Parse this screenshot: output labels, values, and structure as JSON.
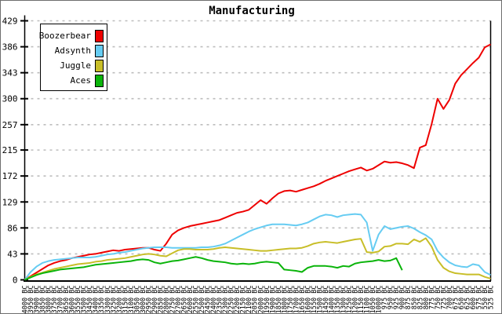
{
  "window": {
    "title": "Manufacturing"
  },
  "colors": {
    "background": "#ffffff",
    "axis": "#000000",
    "gridline": "#bdbdbd",
    "text": "#000000",
    "legend_border": "#000000"
  },
  "chart_data": {
    "type": "line",
    "title": "Manufacturing",
    "xlabel": "",
    "ylabel": "",
    "ylim": [
      0,
      429
    ],
    "y_ticks": [
      0,
      43,
      86,
      129,
      172,
      215,
      257,
      300,
      343,
      386,
      429
    ],
    "grid": "horizontal-dashed",
    "legend_position": "top-left",
    "x_tick_labels": [
      "4000 BC",
      "3950 BC",
      "3900 BC",
      "3850 BC",
      "3800 BC",
      "3750 BC",
      "3700 BC",
      "3650 BC",
      "3600 BC",
      "3550 BC",
      "3500 BC",
      "3450 BC",
      "3400 BC",
      "3350 BC",
      "3300 BC",
      "3250 BC",
      "3200 BC",
      "3150 BC",
      "3100 BC",
      "3050 BC",
      "3000 BC",
      "2950 BC",
      "2900 BC",
      "2850 BC",
      "2800 BC",
      "2750 BC",
      "2700 BC",
      "2650 BC",
      "2600 BC",
      "2550 BC",
      "2500 BC",
      "2450 BC",
      "2400 BC",
      "2350 BC",
      "2300 BC",
      "2250 BC",
      "2200 BC",
      "2150 BC",
      "2100 BC",
      "2050 BC",
      "2000 BC",
      "1950 BC",
      "1900 BC",
      "1850 BC",
      "1800 BC",
      "1750 BC",
      "1700 BC",
      "1650 BC",
      "1600 BC",
      "1550 BC",
      "1500 BC",
      "1450 BC",
      "1400 BC",
      "1350 BC",
      "1300 BC",
      "1250 BC",
      "1200 BC",
      "1150 BC",
      "1100 BC",
      "1050 BC",
      "1000 BC",
      "975 BC",
      "950 BC",
      "925 BC",
      "900 BC",
      "875 BC",
      "850 BC",
      "825 BC",
      "800 BC",
      "775 BC",
      "750 BC",
      "725 BC",
      "700 BC",
      "675 BC",
      "650 BC",
      "625 BC",
      "600 BC",
      "575 BC",
      "550 BC",
      "525 BC"
    ],
    "series": [
      {
        "name": "Boozerbear",
        "color": "#ee0000",
        "values": [
          0,
          6,
          12,
          18,
          24,
          28,
          31,
          33,
          36,
          38,
          40,
          42,
          43,
          45,
          47,
          49,
          48,
          50,
          51,
          52,
          53,
          53,
          50,
          48,
          60,
          75,
          82,
          86,
          89,
          91,
          93,
          95,
          97,
          99,
          103,
          107,
          111,
          113,
          116,
          124,
          132,
          126,
          135,
          143,
          147,
          148,
          146,
          149,
          152,
          155,
          159,
          164,
          168,
          172,
          176,
          180,
          183,
          186,
          181,
          184,
          190,
          196,
          194,
          195,
          193,
          190,
          185,
          219,
          223,
          258,
          300,
          283,
          298,
          325,
          339,
          349,
          359,
          368,
          385,
          390
        ]
      },
      {
        "name": "Adsynth",
        "color": "#66ccf2",
        "values": [
          0,
          13,
          22,
          28,
          31,
          33,
          34,
          35,
          36,
          37,
          37,
          37,
          38,
          40,
          42,
          43,
          45,
          46,
          48,
          50,
          52,
          53,
          54,
          54,
          54,
          53,
          53,
          53,
          53,
          53,
          54,
          54,
          55,
          57,
          60,
          65,
          70,
          75,
          80,
          84,
          87,
          90,
          92,
          92,
          92,
          91,
          90,
          92,
          95,
          100,
          105,
          108,
          107,
          104,
          107,
          108,
          109,
          108,
          95,
          48,
          75,
          89,
          84,
          86,
          88,
          89,
          85,
          79,
          74,
          67,
          48,
          37,
          29,
          24,
          22,
          21,
          26,
          24,
          13,
          8
        ]
      },
      {
        "name": "Juggle",
        "color": "#c8be28",
        "values": [
          0,
          5,
          9,
          12,
          15,
          18,
          20,
          22,
          24,
          26,
          27,
          28,
          30,
          31,
          33,
          34,
          35,
          36,
          38,
          40,
          42,
          43,
          42,
          40,
          39,
          44,
          49,
          51,
          51,
          50,
          50,
          50,
          51,
          53,
          54,
          53,
          52,
          51,
          50,
          49,
          48,
          48,
          49,
          50,
          51,
          52,
          52,
          53,
          56,
          60,
          62,
          63,
          62,
          61,
          63,
          65,
          67,
          68,
          46,
          45,
          47,
          55,
          56,
          60,
          60,
          59,
          67,
          63,
          69,
          55,
          33,
          20,
          14,
          11,
          10,
          9,
          9,
          9,
          5,
          2
        ]
      },
      {
        "name": "Aces",
        "color": "#0ab40a",
        "values": [
          0,
          4,
          8,
          11,
          13,
          15,
          17,
          18,
          19,
          20,
          21,
          23,
          25,
          26,
          27,
          28,
          29,
          30,
          31,
          33,
          34,
          33,
          29,
          27,
          29,
          31,
          32,
          34,
          36,
          38,
          36,
          33,
          31,
          30,
          29,
          27,
          26,
          27,
          26,
          27,
          29,
          30,
          29,
          28,
          17,
          16,
          15,
          13,
          20,
          23,
          23,
          23,
          22,
          20,
          23,
          22,
          27,
          29,
          30,
          31,
          33,
          31,
          32,
          36,
          16,
          null,
          null,
          null,
          null,
          null,
          null,
          null,
          null,
          null,
          null,
          null,
          null,
          null,
          null,
          null
        ]
      }
    ]
  }
}
